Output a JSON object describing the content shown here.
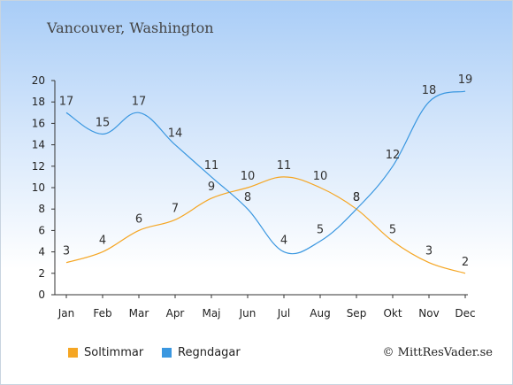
{
  "header": {
    "title": "Vancouver, Washington"
  },
  "footer": {
    "credit": "© MittResVader.se"
  },
  "colors": {
    "sun": "#f5a623",
    "rain": "#3a97e0",
    "axis": "#333333"
  },
  "chart_data": {
    "type": "line",
    "title": "Vancouver, Washington",
    "xlabel": "",
    "ylabel": "",
    "categories": [
      "Jan",
      "Feb",
      "Mar",
      "Apr",
      "Maj",
      "Jun",
      "Jul",
      "Aug",
      "Sep",
      "Okt",
      "Nov",
      "Dec"
    ],
    "ylim": [
      0,
      20
    ],
    "yticks": [
      0,
      2,
      4,
      6,
      8,
      10,
      12,
      14,
      16,
      18,
      20
    ],
    "grid": false,
    "legend_position": "bottom-left",
    "series": [
      {
        "name": "Soltimmar",
        "values": [
          3,
          4,
          6,
          7,
          9,
          10,
          11,
          10,
          8,
          5,
          3,
          2
        ],
        "labels": [
          "3",
          "4",
          "6",
          "7",
          "9",
          "10",
          "11",
          "10",
          "8",
          "5",
          "3",
          "2"
        ]
      },
      {
        "name": "Regndagar",
        "values": [
          17,
          15,
          17,
          14,
          11,
          8,
          4,
          5,
          8,
          12,
          18,
          19
        ],
        "labels": [
          "17",
          "15",
          "17",
          "14",
          "11",
          "8",
          "4",
          "5",
          "8",
          "12",
          "18",
          "19"
        ]
      }
    ]
  }
}
